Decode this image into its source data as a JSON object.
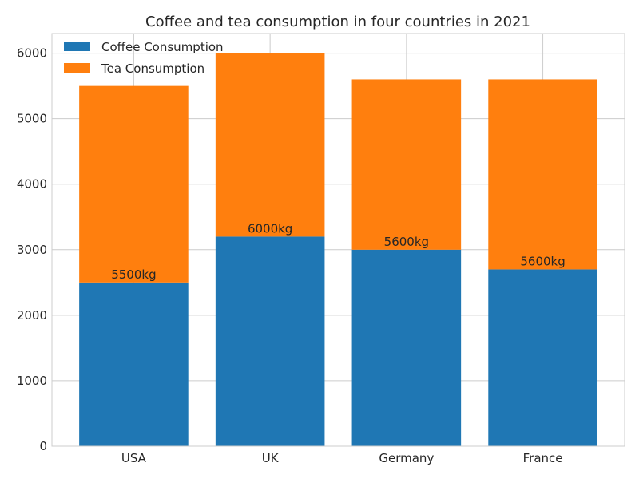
{
  "chart_data": {
    "type": "bar",
    "stacked": true,
    "title": "Coffee and tea consumption in four countries in 2021",
    "xlabel": "",
    "ylabel": "",
    "categories": [
      "USA",
      "UK",
      "Germany",
      "France"
    ],
    "series": [
      {
        "name": "Coffee Consumption",
        "values": [
          2500,
          3200,
          3000,
          2700
        ],
        "color": "#1f77b4"
      },
      {
        "name": "Tea Consumption",
        "values": [
          3000,
          2800,
          2600,
          2900
        ],
        "color": "#ff7f0e"
      }
    ],
    "totals_labels": [
      "5500kg",
      "6000kg",
      "5600kg",
      "5600kg"
    ],
    "ylim": [
      0,
      6300
    ],
    "yticks": [
      0,
      1000,
      2000,
      3000,
      4000,
      5000,
      6000
    ],
    "grid": true,
    "legend_position": "top-left"
  }
}
